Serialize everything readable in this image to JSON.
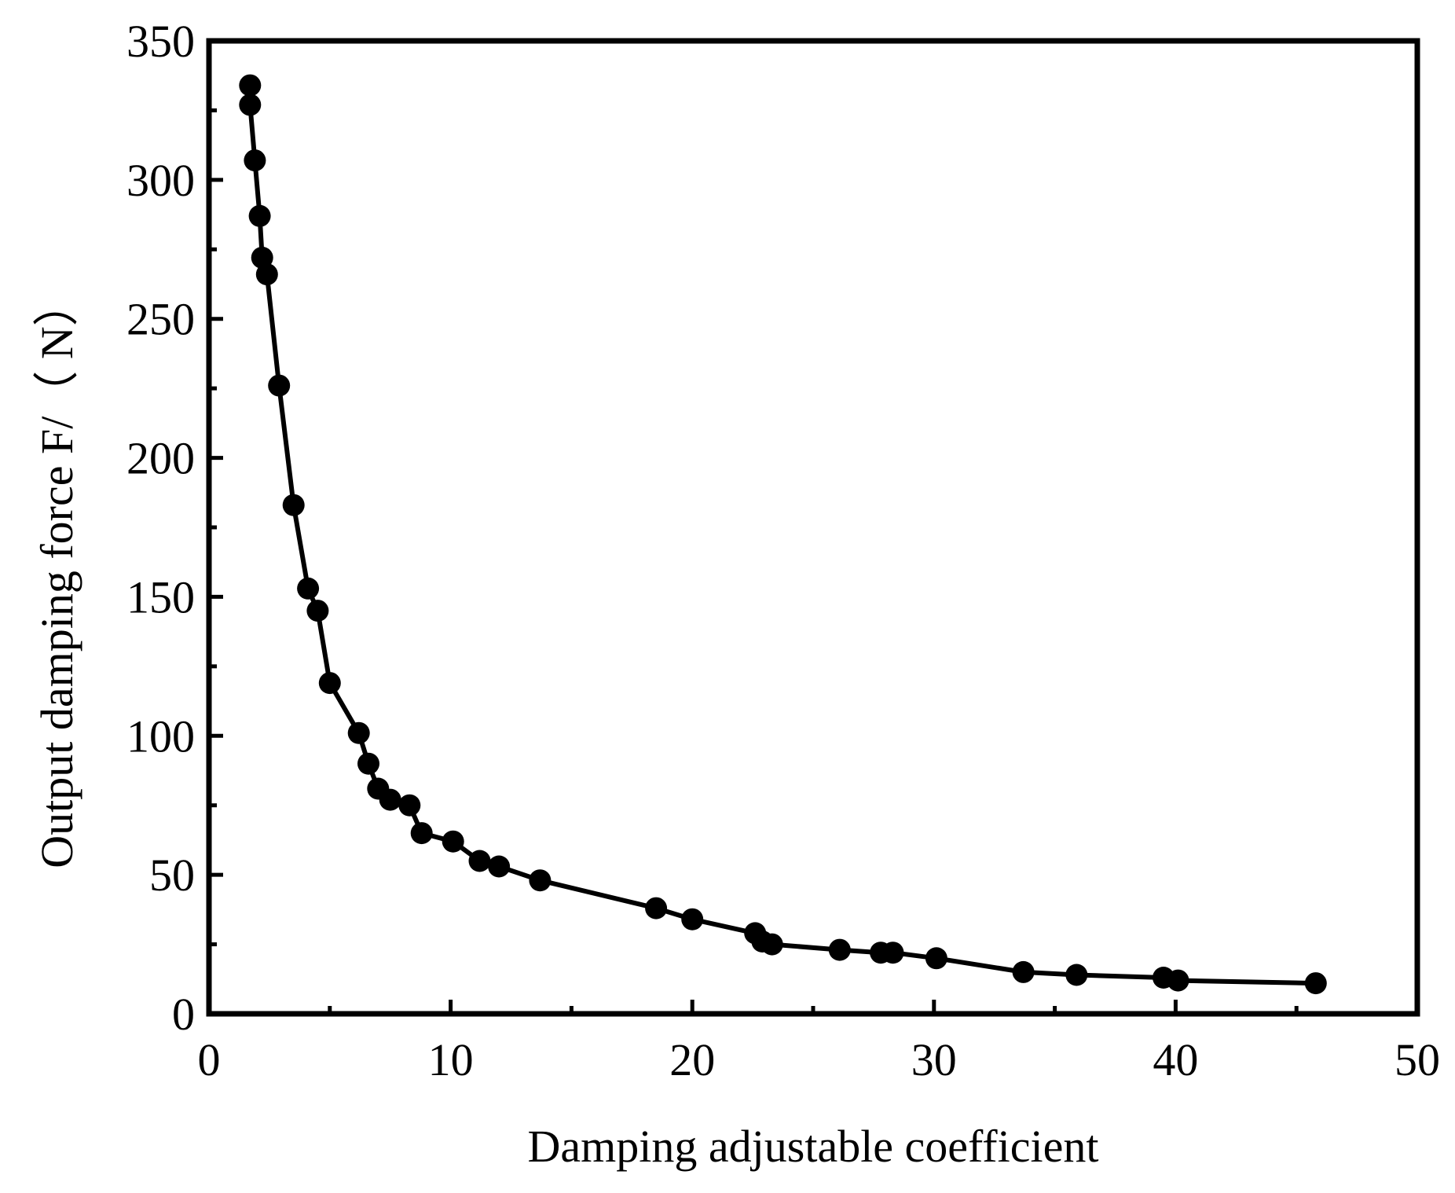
{
  "chart_data": {
    "type": "line",
    "title": "",
    "xlabel": "Damping adjustable coefficient",
    "ylabel": "Output damping force F/（ N）",
    "xlim": [
      0,
      50
    ],
    "ylim": [
      0,
      350
    ],
    "x_ticks": [
      "0",
      "10",
      "20",
      "30",
      "40",
      "50"
    ],
    "y_ticks": [
      "0",
      "50",
      "100",
      "150",
      "200",
      "250",
      "300",
      "350"
    ],
    "grid": false,
    "legend": "none",
    "colors": {
      "line": "#000000",
      "marker": "#000000",
      "axis": "#000000",
      "background": "#ffffff"
    },
    "series": [
      {
        "points": [
          [
            1.7,
            334
          ],
          [
            1.7,
            327
          ],
          [
            1.9,
            307
          ],
          [
            2.1,
            287
          ],
          [
            2.2,
            272
          ],
          [
            2.4,
            266
          ],
          [
            2.9,
            226
          ],
          [
            3.5,
            183
          ],
          [
            4.1,
            153
          ],
          [
            4.5,
            145
          ],
          [
            5.0,
            119
          ],
          [
            6.2,
            101
          ],
          [
            6.6,
            90
          ],
          [
            7.0,
            81
          ],
          [
            7.5,
            77
          ],
          [
            8.3,
            75
          ],
          [
            8.8,
            65
          ],
          [
            10.1,
            62
          ],
          [
            11.2,
            55
          ],
          [
            12.0,
            53
          ],
          [
            13.7,
            48
          ],
          [
            18.5,
            38
          ],
          [
            20.0,
            34
          ],
          [
            22.6,
            29
          ],
          [
            22.9,
            26
          ],
          [
            23.3,
            25
          ],
          [
            26.1,
            23
          ],
          [
            27.8,
            22
          ],
          [
            28.3,
            22
          ],
          [
            30.1,
            20
          ],
          [
            33.7,
            15
          ],
          [
            35.9,
            14
          ],
          [
            39.5,
            13
          ],
          [
            40.1,
            12
          ],
          [
            45.8,
            11
          ]
        ]
      }
    ]
  }
}
